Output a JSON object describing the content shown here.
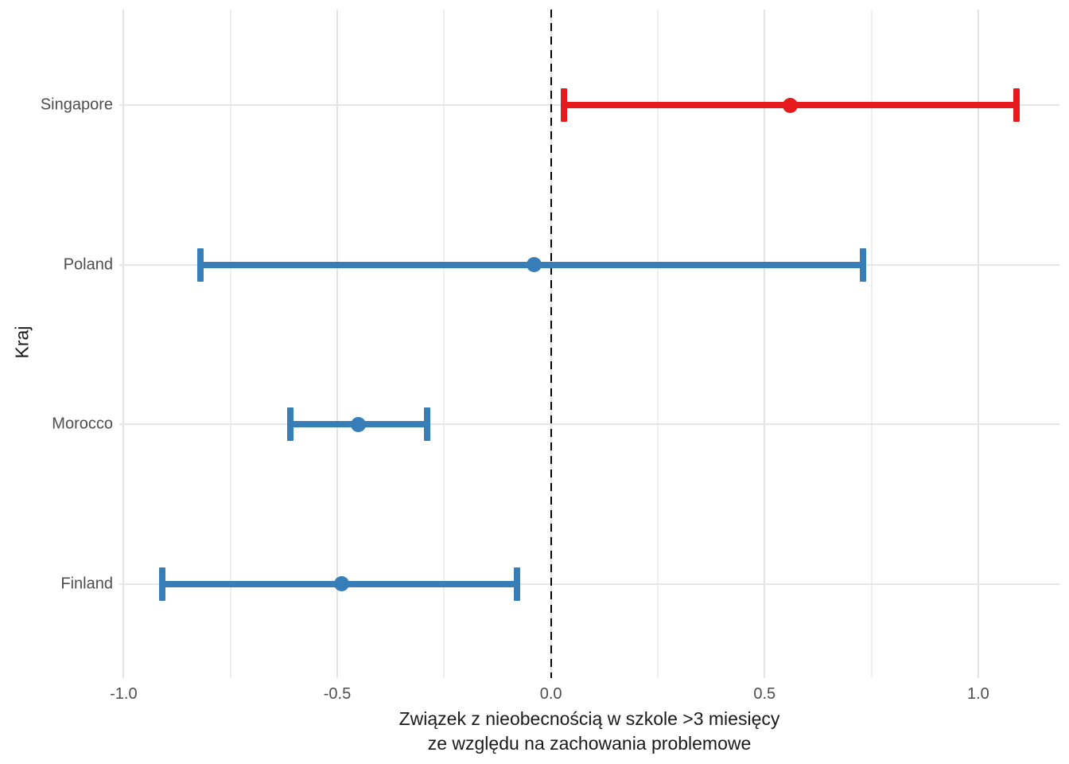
{
  "figure": {
    "ylabel": "Kraj",
    "xlabel_line1": "Związek z nieobecnością w szkole >3 miesięcy",
    "xlabel_line2": "ze względu na zachowania problemowe"
  },
  "chart_data": {
    "type": "errorbar",
    "subtype": "forest-dot-whisker",
    "orientation": "horizontal",
    "title": "",
    "xlabel": "Związek z nieobecnością w szkole >3 miesięcy ze względu na zachowania problemowe",
    "ylabel": "Kraj",
    "categories": [
      "Singapore",
      "Poland",
      "Morocco",
      "Finland"
    ],
    "points": [
      {
        "label": "Singapore",
        "estimate": 0.56,
        "ci_low": 0.03,
        "ci_high": 1.09,
        "color": "#E41A1C"
      },
      {
        "label": "Poland",
        "estimate": -0.04,
        "ci_low": -0.82,
        "ci_high": 0.73,
        "color": "#377EB8"
      },
      {
        "label": "Morocco",
        "estimate": -0.45,
        "ci_low": -0.61,
        "ci_high": -0.29,
        "color": "#377EB8"
      },
      {
        "label": "Finland",
        "estimate": -0.49,
        "ci_low": -0.91,
        "ci_high": -0.08,
        "color": "#377EB8"
      }
    ],
    "x_tick_labels": [
      "-1.0",
      "-0.5",
      "0.0",
      "0.5",
      "1.0"
    ],
    "x_tick_values": [
      -1.0,
      -0.5,
      0.0,
      0.5,
      1.0
    ],
    "x_minor_tick_values": [
      -0.75,
      -0.25,
      0.25,
      0.75
    ],
    "xlim": [
      -1.01,
      1.19
    ],
    "reference_line": {
      "x": 0,
      "style": "dashed",
      "color": "#000000"
    },
    "grid": true,
    "legend": "none",
    "colors": {
      "positive_significant": "#E41A1C",
      "other": "#377EB8",
      "grid_major": "#E3E3E3",
      "grid_minor": "#EFEFEF"
    }
  }
}
